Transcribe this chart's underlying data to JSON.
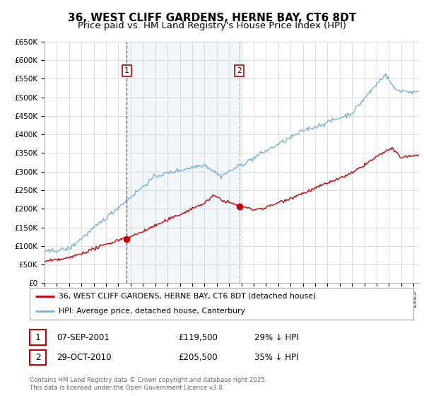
{
  "title": "36, WEST CLIFF GARDENS, HERNE BAY, CT6 8DT",
  "subtitle": "Price paid vs. HM Land Registry's House Price Index (HPI)",
  "legend_line1": "36, WEST CLIFF GARDENS, HERNE BAY, CT6 8DT (detached house)",
  "legend_line2": "HPI: Average price, detached house, Canterbury",
  "footnote": "Contains HM Land Registry data © Crown copyright and database right 2025.\nThis data is licensed under the Open Government Licence v3.0.",
  "transaction1_date": "07-SEP-2001",
  "transaction1_price": "£119,500",
  "transaction1_hpi": "29% ↓ HPI",
  "transaction2_date": "29-OCT-2010",
  "transaction2_price": "£205,500",
  "transaction2_hpi": "35% ↓ HPI",
  "vline1_x": 2001.69,
  "vline2_x": 2010.83,
  "marker1_y_red": 119500,
  "marker2_y_red": 205500,
  "ylim": [
    0,
    650000
  ],
  "xlim": [
    1995,
    2025.5
  ],
  "hpi_color": "#7ab3d4",
  "price_color": "#cc0000",
  "grid_color": "#d0d0d0",
  "background_color": "#ffffff",
  "plot_bg_color": "#ffffff",
  "title_fontsize": 11,
  "subtitle_fontsize": 9.5
}
